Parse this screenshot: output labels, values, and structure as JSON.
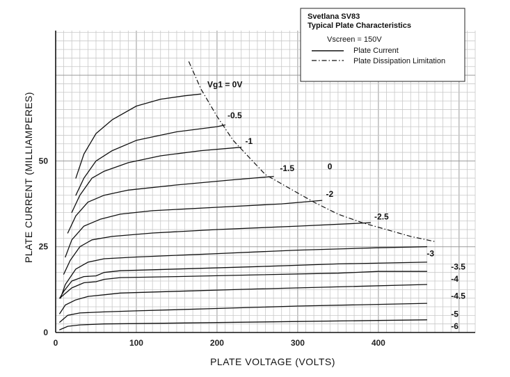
{
  "chart_data": {
    "type": "line",
    "title": "Svetlana SV83",
    "subtitle": "Typical Plate Characteristics",
    "xlabel": "PLATE VOLTAGE (VOLTS)",
    "ylabel": "PLATE CURRENT (MILLIAMPERES)",
    "xlim": [
      0,
      520
    ],
    "ylim": [
      0,
      88
    ],
    "x_ticks": [
      {
        "value": 0,
        "label": "0"
      },
      {
        "value": 100,
        "label": "100"
      },
      {
        "value": 200,
        "label": "200"
      },
      {
        "value": 300,
        "label": "300"
      },
      {
        "value": 400,
        "label": "400"
      }
    ],
    "y_ticks": [
      {
        "value": 0,
        "label": "0"
      },
      {
        "value": 25,
        "label": "25"
      },
      {
        "value": 50,
        "label": "50"
      }
    ],
    "grid": true,
    "legend": {
      "placement": "top-right",
      "condition": "Vscreen = 150V",
      "entries": [
        {
          "label": "Plate Current",
          "style": "solid"
        },
        {
          "label": "Plate Dissipation Limitation",
          "style": "dash-dot"
        }
      ]
    },
    "series": [
      {
        "name": "Vg1 = 0V",
        "x": [
          25,
          35,
          50,
          70,
          100,
          130,
          160,
          180
        ],
        "y": [
          45,
          52,
          58,
          62,
          66,
          68,
          69,
          69.5
        ]
      },
      {
        "name": "-0.5",
        "x": [
          25,
          35,
          50,
          70,
          100,
          150,
          200,
          210
        ],
        "y": [
          40,
          45,
          50,
          53,
          56,
          58.5,
          60,
          60.5
        ]
      },
      {
        "name": "-1",
        "x": [
          20,
          30,
          45,
          60,
          90,
          130,
          180,
          230
        ],
        "y": [
          35,
          40,
          45,
          47,
          49.5,
          51.5,
          53,
          54
        ]
      },
      {
        "name": "-1.5",
        "x": [
          15,
          25,
          40,
          60,
          90,
          150,
          220,
          270
        ],
        "y": [
          29,
          34,
          38,
          40,
          41.5,
          43,
          44.5,
          45.5
        ]
      },
      {
        "name": "-2",
        "x": [
          12,
          20,
          35,
          55,
          80,
          120,
          200,
          280,
          330
        ],
        "y": [
          22,
          27,
          31,
          33,
          34.5,
          35.5,
          36.5,
          37.5,
          38.5
        ]
      },
      {
        "name": "-2.5",
        "x": [
          10,
          18,
          30,
          45,
          70,
          120,
          200,
          300,
          390
        ],
        "y": [
          17,
          21,
          25,
          27,
          28,
          29,
          30,
          31,
          32
        ]
      },
      {
        "name": "-3",
        "x": [
          6,
          12,
          25,
          40,
          60,
          100,
          200,
          300,
          400,
          460
        ],
        "y": [
          10,
          14,
          18.5,
          20.5,
          21.5,
          22,
          23,
          24,
          24.7,
          25
        ]
      },
      {
        "name": "-3.5",
        "x": [
          5,
          10,
          20,
          35,
          50,
          60,
          80,
          150,
          250,
          350,
          460
        ],
        "y": [
          10,
          12,
          15,
          16.3,
          16.5,
          17.5,
          18,
          18.5,
          19.2,
          20,
          20.5
        ]
      },
      {
        "name": "-4",
        "x": [
          5,
          10,
          20,
          35,
          50,
          60,
          80,
          150,
          250,
          350,
          400,
          460
        ],
        "y": [
          10,
          11,
          13,
          14.5,
          14.8,
          15.5,
          16,
          16.3,
          16.8,
          17.3,
          17.8,
          17.8
        ]
      },
      {
        "name": "-4.5",
        "x": [
          5,
          12,
          25,
          40,
          60,
          80,
          150,
          250,
          350,
          460
        ],
        "y": [
          5.5,
          8,
          9.5,
          10.5,
          11,
          11.5,
          12,
          12.7,
          13.3,
          14
        ]
      },
      {
        "name": "-5",
        "x": [
          5,
          15,
          30,
          60,
          100,
          200,
          300,
          400,
          460
        ],
        "y": [
          3,
          5,
          5.7,
          6,
          6.3,
          7,
          7.7,
          8.2,
          8.5
        ]
      },
      {
        "name": "-6",
        "x": [
          5,
          15,
          30,
          60,
          100,
          200,
          300,
          400,
          460
        ],
        "y": [
          0.8,
          1.8,
          2.2,
          2.5,
          2.6,
          2.9,
          3.2,
          3.5,
          3.7
        ]
      }
    ],
    "dissipation_limit": {
      "name": "Plate Dissipation Limitation",
      "x": [
        165,
        180,
        200,
        220,
        240,
        260,
        290,
        320,
        350,
        380,
        410,
        440,
        470
      ],
      "y": [
        79,
        71,
        63,
        56,
        51,
        46,
        42,
        38,
        34.5,
        32,
        30,
        28,
        26.5
      ]
    },
    "annotations": [
      {
        "text": "Vg1 = 0V",
        "x": 188,
        "y": 71.5
      },
      {
        "text": "-0.5",
        "x": 213,
        "y": 62.5
      },
      {
        "text": "-1",
        "x": 235,
        "y": 55
      },
      {
        "text": "-1.5",
        "x": 278,
        "y": 47
      },
      {
        "text": "0",
        "x": 337,
        "y": 47.5
      },
      {
        "text": "-2",
        "x": 335,
        "y": 39.5
      },
      {
        "text": "-2.5",
        "x": 395,
        "y": 33
      },
      {
        "text": "-3",
        "x": 460,
        "y": 22.2
      },
      {
        "text": "-3.5",
        "x": 490,
        "y": 18.3
      },
      {
        "text": "-4",
        "x": 490,
        "y": 14.8
      },
      {
        "text": "-4.5",
        "x": 490,
        "y": 9.8
      },
      {
        "text": "-5",
        "x": 490,
        "y": 4.6
      },
      {
        "text": "-6",
        "x": 490,
        "y": 1.0
      }
    ]
  }
}
